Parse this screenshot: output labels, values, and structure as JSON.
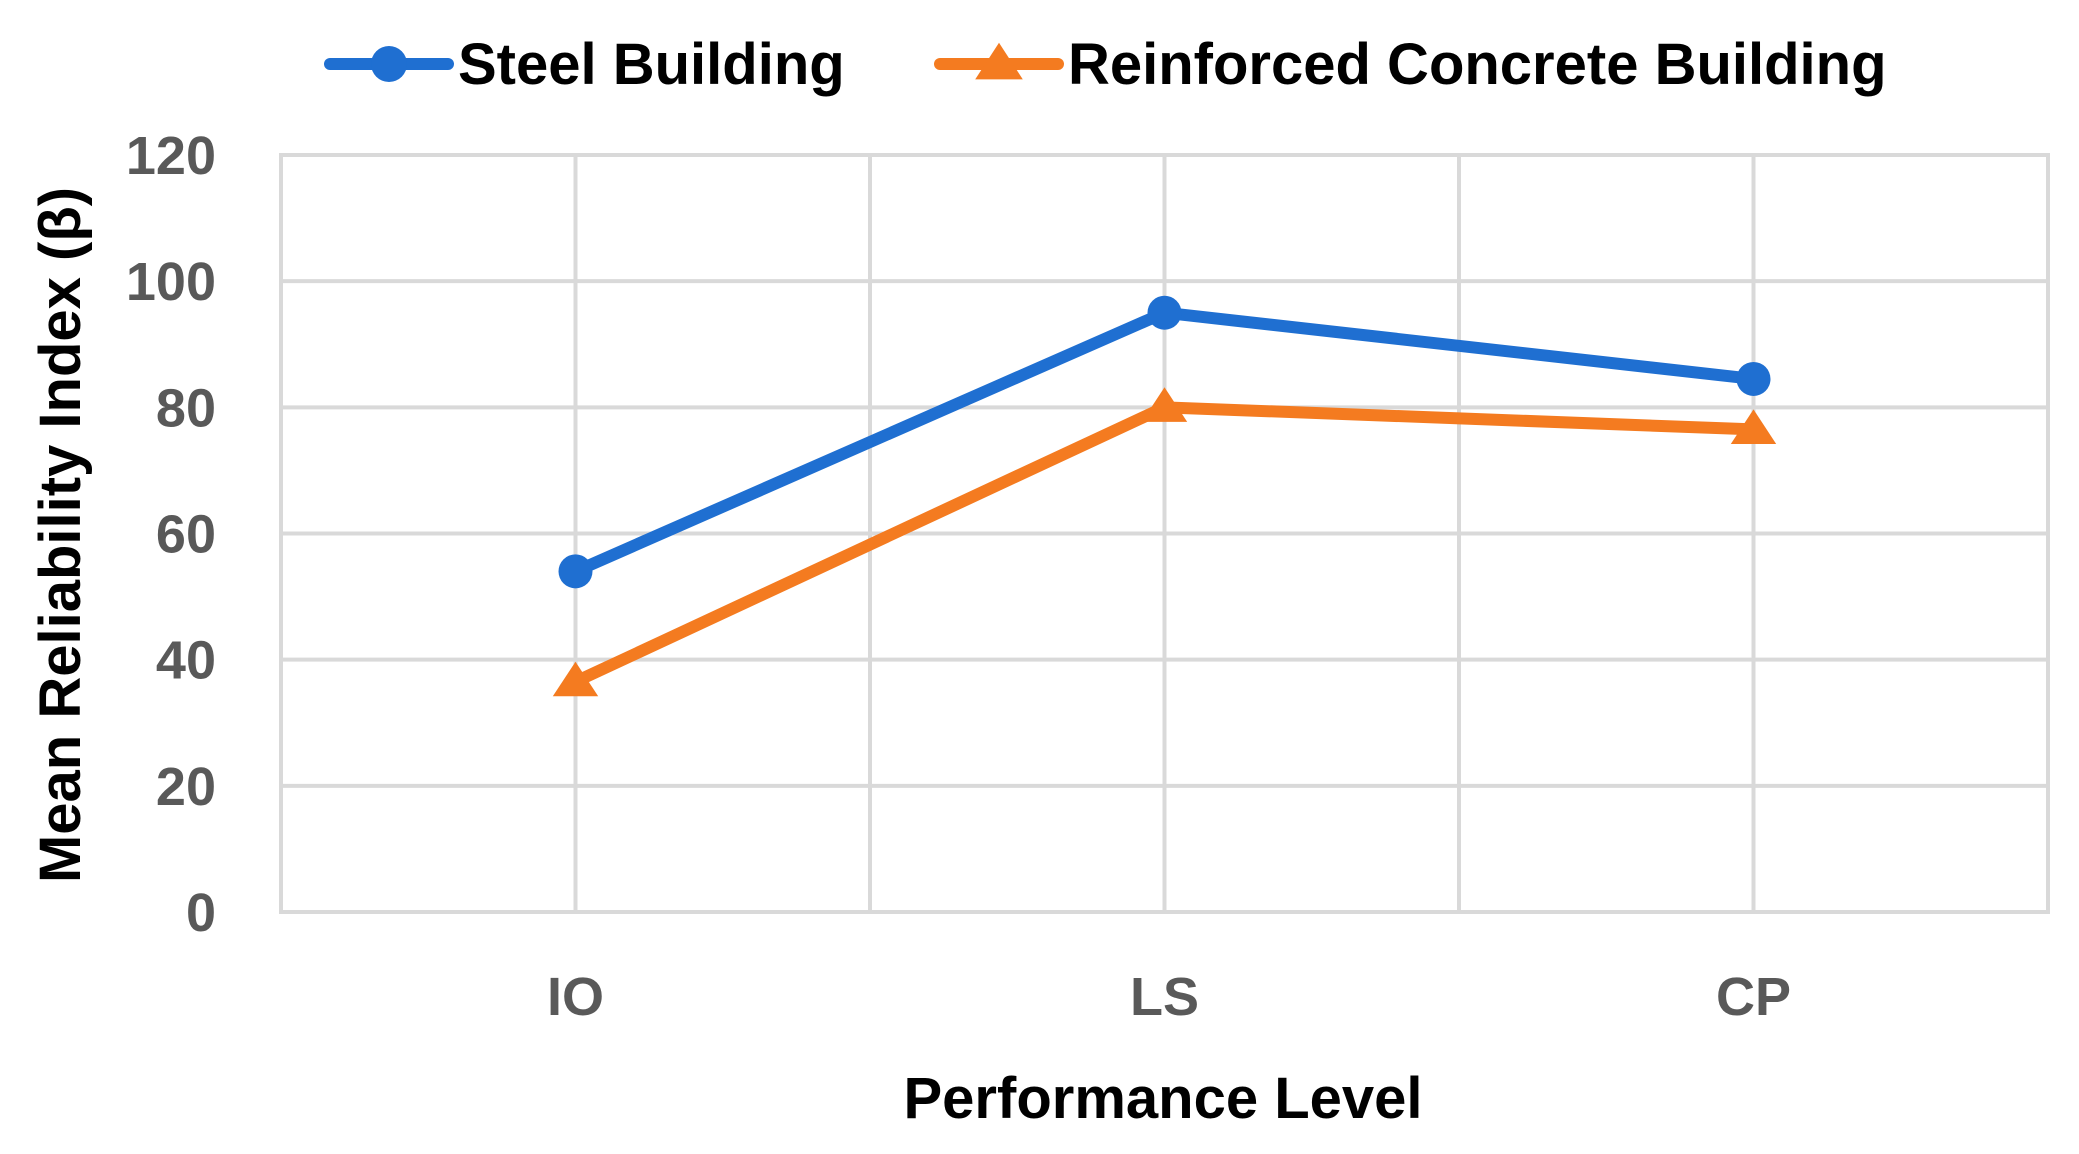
{
  "chart_data": {
    "type": "line",
    "categories": [
      "IO",
      "LS",
      "CP"
    ],
    "series": [
      {
        "name": "Steel Building",
        "values": [
          54,
          95,
          84.5
        ],
        "color": "#1f6fd1",
        "marker": "circle"
      },
      {
        "name": "Reinforced Concrete Building",
        "values": [
          36.5,
          80,
          76.5
        ],
        "color": "#f47b20",
        "marker": "triangle"
      }
    ],
    "title": "",
    "xlabel": "Performance Level",
    "ylabel": "Mean Reliability Index (β)",
    "ylim": [
      0,
      120
    ],
    "yticks": [
      0,
      20,
      40,
      60,
      80,
      100,
      120
    ],
    "grid": true,
    "legend_position": "top"
  }
}
